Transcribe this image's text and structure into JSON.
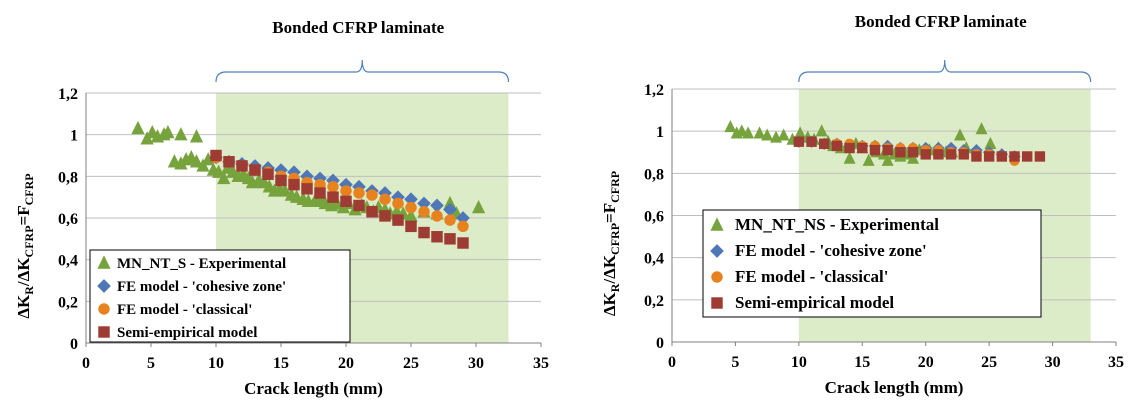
{
  "chart_data": [
    {
      "type": "scatter",
      "title": "",
      "region": {
        "label": "Bonded CFRP laminate",
        "x_range": [
          10,
          32.5
        ]
      },
      "xlabel": "Crack length (mm)",
      "ylabel": "ΔK_R/ΔK_CFRP=F_CFRP",
      "xlim": [
        0,
        35
      ],
      "ylim": [
        0,
        1.2
      ],
      "x_ticks": [
        "0",
        "5",
        "10",
        "15",
        "20",
        "25",
        "30",
        "35"
      ],
      "y_ticks": [
        "0",
        "0,2",
        "0,4",
        "0,6",
        "0,8",
        "1",
        "1,2"
      ],
      "grid": true,
      "legend_position": "lower-left",
      "series": [
        {
          "name": "MN_NT_S - Experimental",
          "marker": "triangle",
          "color": "#77a33d",
          "points": [
            [
              4,
              1.03
            ],
            [
              4.7,
              0.98
            ],
            [
              5.1,
              1.01
            ],
            [
              5.5,
              0.99
            ],
            [
              6,
              1.0
            ],
            [
              6.3,
              1.01
            ],
            [
              6.8,
              0.87
            ],
            [
              7.3,
              1.0
            ],
            [
              7.3,
              0.86
            ],
            [
              7.7,
              0.88
            ],
            [
              8.1,
              0.89
            ],
            [
              8.5,
              0.87
            ],
            [
              8.5,
              0.99
            ],
            [
              9,
              0.85
            ],
            [
              9.4,
              0.88
            ],
            [
              9.8,
              0.83
            ],
            [
              10.2,
              0.82
            ],
            [
              10.6,
              0.79
            ],
            [
              10.9,
              0.84
            ],
            [
              11.3,
              0.82
            ],
            [
              11.7,
              0.8
            ],
            [
              12.1,
              0.81
            ],
            [
              12.5,
              0.79
            ],
            [
              12.8,
              0.77
            ],
            [
              13.3,
              0.78
            ],
            [
              13.7,
              0.77
            ],
            [
              14.1,
              0.75
            ],
            [
              14.5,
              0.73
            ],
            [
              14.9,
              0.74
            ],
            [
              15.3,
              0.73
            ],
            [
              15.8,
              0.71
            ],
            [
              16.2,
              0.7
            ],
            [
              16.7,
              0.69
            ],
            [
              17.1,
              0.68
            ],
            [
              17.6,
              0.68
            ],
            [
              18,
              0.69
            ],
            [
              18.4,
              0.67
            ],
            [
              18.9,
              0.66
            ],
            [
              19.3,
              0.67
            ],
            [
              19.8,
              0.65
            ],
            [
              20.2,
              0.67
            ],
            [
              20.7,
              0.64
            ],
            [
              21.2,
              0.66
            ],
            [
              21.6,
              0.65
            ],
            [
              22.1,
              0.63
            ],
            [
              22.5,
              0.65
            ],
            [
              23,
              0.64
            ],
            [
              23.4,
              0.62
            ],
            [
              23.9,
              0.63
            ],
            [
              24.4,
              0.62
            ],
            [
              25,
              0.61
            ],
            [
              26,
              0.63
            ],
            [
              27,
              0.62
            ],
            [
              28,
              0.67
            ],
            [
              28.5,
              0.62
            ],
            [
              30.2,
              0.65
            ]
          ]
        },
        {
          "name": "FE model - 'cohesive zone'",
          "marker": "diamond",
          "color": "#4f76b6",
          "points": [
            [
              10,
              0.89
            ],
            [
              11,
              0.87
            ],
            [
              12,
              0.86
            ],
            [
              13,
              0.85
            ],
            [
              14,
              0.84
            ],
            [
              15,
              0.83
            ],
            [
              16,
              0.82
            ],
            [
              17,
              0.8
            ],
            [
              18,
              0.79
            ],
            [
              19,
              0.78
            ],
            [
              20,
              0.76
            ],
            [
              21,
              0.75
            ],
            [
              22,
              0.73
            ],
            [
              23,
              0.72
            ],
            [
              24,
              0.7
            ],
            [
              25,
              0.69
            ],
            [
              26,
              0.67
            ],
            [
              27,
              0.66
            ],
            [
              28,
              0.64
            ],
            [
              29,
              0.6
            ]
          ]
        },
        {
          "name": "FE model - 'classical'",
          "marker": "circle",
          "color": "#e8821e",
          "points": [
            [
              10,
              0.89
            ],
            [
              11,
              0.87
            ],
            [
              12,
              0.85
            ],
            [
              13,
              0.83
            ],
            [
              14,
              0.82
            ],
            [
              15,
              0.8
            ],
            [
              16,
              0.79
            ],
            [
              17,
              0.77
            ],
            [
              18,
              0.76
            ],
            [
              19,
              0.75
            ],
            [
              20,
              0.73
            ],
            [
              21,
              0.72
            ],
            [
              22,
              0.71
            ],
            [
              23,
              0.69
            ],
            [
              24,
              0.67
            ],
            [
              25,
              0.65
            ],
            [
              26,
              0.63
            ],
            [
              27,
              0.61
            ],
            [
              28,
              0.59
            ],
            [
              29,
              0.56
            ]
          ]
        },
        {
          "name": "Semi-empirical model",
          "marker": "square",
          "color": "#9e3b32",
          "points": [
            [
              10,
              0.9
            ],
            [
              11,
              0.87
            ],
            [
              12,
              0.85
            ],
            [
              13,
              0.83
            ],
            [
              14,
              0.81
            ],
            [
              15,
              0.78
            ],
            [
              16,
              0.76
            ],
            [
              17,
              0.74
            ],
            [
              18,
              0.72
            ],
            [
              19,
              0.7
            ],
            [
              20,
              0.68
            ],
            [
              21,
              0.66
            ],
            [
              22,
              0.63
            ],
            [
              23,
              0.61
            ],
            [
              24,
              0.59
            ],
            [
              25,
              0.56
            ],
            [
              26,
              0.53
            ],
            [
              27,
              0.51
            ],
            [
              28,
              0.5
            ],
            [
              29,
              0.48
            ]
          ]
        }
      ]
    },
    {
      "type": "scatter",
      "title": "",
      "region": {
        "label": "Bonded CFRP laminate",
        "x_range": [
          10,
          33
        ]
      },
      "xlabel": "Crack length (mm)",
      "ylabel": "ΔK_R/ΔK_CFRP=F_CFRP",
      "xlim": [
        0,
        35
      ],
      "ylim": [
        0,
        1.2
      ],
      "x_ticks": [
        "0",
        "5",
        "10",
        "15",
        "20",
        "25",
        "30",
        "35"
      ],
      "y_ticks": [
        "0",
        "0,2",
        "0,4",
        "0,6",
        "0,8",
        "1",
        "1,2"
      ],
      "grid": true,
      "legend_position": "lower-left",
      "series": [
        {
          "name": "MN_NT_NS - Experimental",
          "marker": "triangle",
          "color": "#77a33d",
          "points": [
            [
              4.6,
              1.02
            ],
            [
              5.1,
              0.99
            ],
            [
              5.5,
              1.0
            ],
            [
              6.0,
              0.99
            ],
            [
              6.9,
              0.99
            ],
            [
              7.5,
              0.98
            ],
            [
              8.2,
              0.97
            ],
            [
              8.8,
              0.98
            ],
            [
              9.5,
              0.96
            ],
            [
              10.1,
              0.99
            ],
            [
              10.7,
              0.97
            ],
            [
              11.2,
              0.96
            ],
            [
              11.8,
              1.0
            ],
            [
              12.3,
              0.95
            ],
            [
              12.7,
              0.93
            ],
            [
              13.3,
              0.92
            ],
            [
              13.8,
              0.93
            ],
            [
              14,
              0.87
            ],
            [
              14.5,
              0.94
            ],
            [
              15,
              0.92
            ],
            [
              15.5,
              0.86
            ],
            [
              16.1,
              0.9
            ],
            [
              16.7,
              0.89
            ],
            [
              17,
              0.86
            ],
            [
              17.5,
              0.89
            ],
            [
              18,
              0.88
            ],
            [
              18.5,
              0.89
            ],
            [
              19,
              0.87
            ],
            [
              19.5,
              0.91
            ],
            [
              20.3,
              0.91
            ],
            [
              21,
              0.92
            ],
            [
              21.6,
              0.9
            ],
            [
              22.1,
              0.9
            ],
            [
              22.7,
              0.98
            ],
            [
              23.2,
              0.92
            ],
            [
              24.4,
              1.01
            ],
            [
              25.1,
              0.94
            ]
          ]
        },
        {
          "name": "FE model - 'cohesive zone'",
          "marker": "diamond",
          "color": "#4f76b6",
          "points": [
            [
              10,
              0.95
            ],
            [
              11,
              0.95
            ],
            [
              12,
              0.94
            ],
            [
              13,
              0.94
            ],
            [
              14,
              0.93
            ],
            [
              15,
              0.93
            ],
            [
              16,
              0.93
            ],
            [
              17,
              0.93
            ],
            [
              18,
              0.92
            ],
            [
              19,
              0.92
            ],
            [
              20,
              0.92
            ],
            [
              21,
              0.92
            ],
            [
              22,
              0.92
            ],
            [
              23,
              0.91
            ],
            [
              24,
              0.91
            ],
            [
              25,
              0.9
            ],
            [
              26,
              0.89
            ],
            [
              27,
              0.88
            ]
          ]
        },
        {
          "name": "FE model - 'classical'",
          "marker": "circle",
          "color": "#e8821e",
          "points": [
            [
              10,
              0.95
            ],
            [
              11,
              0.95
            ],
            [
              12,
              0.94
            ],
            [
              13,
              0.94
            ],
            [
              14,
              0.94
            ],
            [
              15,
              0.93
            ],
            [
              16,
              0.93
            ],
            [
              17,
              0.92
            ],
            [
              18,
              0.92
            ],
            [
              19,
              0.92
            ],
            [
              20,
              0.91
            ],
            [
              21,
              0.91
            ],
            [
              22,
              0.9
            ],
            [
              23,
              0.9
            ],
            [
              24,
              0.89
            ],
            [
              25,
              0.89
            ],
            [
              26,
              0.88
            ],
            [
              27,
              0.86
            ]
          ]
        },
        {
          "name": "Semi-empirical model",
          "marker": "square",
          "color": "#9e3b32",
          "points": [
            [
              10,
              0.95
            ],
            [
              11,
              0.95
            ],
            [
              12,
              0.94
            ],
            [
              13,
              0.93
            ],
            [
              14,
              0.92
            ],
            [
              15,
              0.92
            ],
            [
              16,
              0.91
            ],
            [
              17,
              0.91
            ],
            [
              18,
              0.9
            ],
            [
              19,
              0.9
            ],
            [
              20,
              0.89
            ],
            [
              21,
              0.89
            ],
            [
              22,
              0.89
            ],
            [
              23,
              0.89
            ],
            [
              24,
              0.88
            ],
            [
              25,
              0.88
            ],
            [
              26,
              0.88
            ],
            [
              27,
              0.88
            ],
            [
              28,
              0.88
            ],
            [
              29,
              0.88
            ]
          ]
        }
      ]
    }
  ]
}
